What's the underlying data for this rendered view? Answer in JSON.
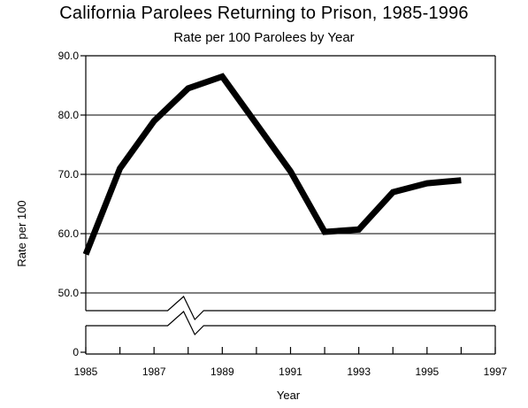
{
  "chart_data": {
    "type": "line",
    "title": "California Parolees Returning to Prison, 1985-1996",
    "subtitle": "Rate per 100 Parolees by Year",
    "xlabel": "Year",
    "ylabel": "Rate per 100",
    "x": [
      1985,
      1986,
      1987,
      1988,
      1989,
      1990,
      1991,
      1992,
      1993,
      1994,
      1995,
      1996
    ],
    "series": [
      {
        "values": [
          56.5,
          71.0,
          79.0,
          84.5,
          86.5,
          78.5,
          70.5,
          60.3,
          60.7,
          67.0,
          68.5,
          69.0
        ]
      }
    ],
    "xlim": [
      1985,
      1997
    ],
    "ylim": [
      50,
      90
    ],
    "x_ticks": [
      "1985",
      "1987",
      "1989",
      "1991",
      "1993",
      "1995",
      "1997"
    ],
    "y_ticks": [
      "90.0",
      "80.0",
      "70.0",
      "60.0",
      "50.0"
    ],
    "y_zero_label": "0",
    "axis_break": true,
    "grid": "horizontal",
    "line_color": "#000000"
  }
}
